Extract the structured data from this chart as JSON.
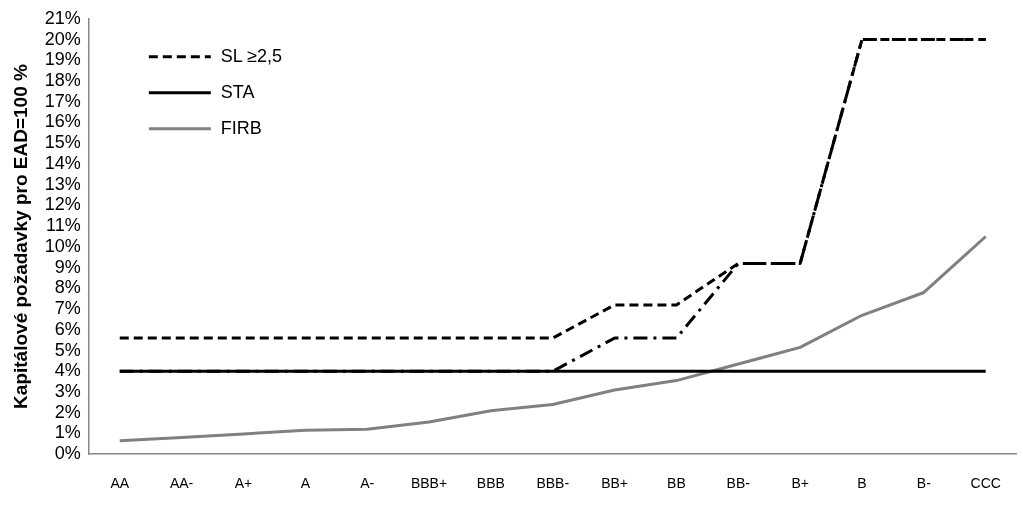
{
  "chart_data": {
    "type": "line",
    "ylabel": "Kapitálové požadavky pro EAD=100 %",
    "categories": [
      "AA",
      "AA-",
      "A+",
      "A",
      "A-",
      "BBB+",
      "BBB",
      "BBB-",
      "BB+",
      "BB",
      "BB-",
      "B+",
      "B",
      "B-",
      "CCC"
    ],
    "series": [
      {
        "name": "SL ≥2,5",
        "color": "#000000",
        "line_style": "dashed",
        "values": [
          5.6,
          5.6,
          5.6,
          5.6,
          5.6,
          5.6,
          5.6,
          5.6,
          7.2,
          7.2,
          9.2,
          9.2,
          20,
          20,
          20
        ]
      },
      {
        "name": "STA",
        "color": "#000000",
        "line_style": "solid",
        "values": [
          4,
          4,
          4,
          4,
          4,
          4,
          4,
          4,
          4,
          4,
          4,
          4,
          4,
          4,
          4
        ]
      },
      {
        "name": "FIRB",
        "color": "#808080",
        "line_style": "solid",
        "values": [
          0.65,
          0.8,
          0.98,
          1.15,
          1.2,
          1.55,
          2.1,
          2.4,
          3.1,
          3.55,
          4.35,
          5.15,
          6.7,
          7.8,
          10.5
        ]
      },
      {
        "color": "#000000",
        "line_style": "dashdot",
        "values": [
          4,
          4,
          4,
          4,
          4,
          4,
          4,
          4,
          5.6,
          5.6,
          9.2,
          9.2,
          20,
          20,
          20
        ]
      }
    ],
    "ylim": [
      0,
      21
    ],
    "yticks": [
      {
        "value": 0,
        "label": "0%"
      },
      {
        "value": 1,
        "label": "1%"
      },
      {
        "value": 2,
        "label": "2%"
      },
      {
        "value": 3,
        "label": "3%"
      },
      {
        "value": 4,
        "label": "4%"
      },
      {
        "value": 5,
        "label": "5%"
      },
      {
        "value": 6,
        "label": "6%"
      },
      {
        "value": 7,
        "label": "7%"
      },
      {
        "value": 8,
        "label": "8%"
      },
      {
        "value": 9,
        "label": "9%"
      },
      {
        "value": 10,
        "label": "10%"
      },
      {
        "value": 11,
        "label": "11%"
      },
      {
        "value": 12,
        "label": "12%"
      },
      {
        "value": 13,
        "label": "13%"
      },
      {
        "value": 14,
        "label": "14%"
      },
      {
        "value": 15,
        "label": "15%"
      },
      {
        "value": 16,
        "label": "16%"
      },
      {
        "value": 17,
        "label": "17%"
      },
      {
        "value": 18,
        "label": "18%"
      },
      {
        "value": 19,
        "label": "19%"
      },
      {
        "value": 20,
        "label": "20%"
      },
      {
        "value": 21,
        "label": "21%"
      }
    ],
    "grid": false,
    "legend": "top left",
    "marker": "none"
  }
}
